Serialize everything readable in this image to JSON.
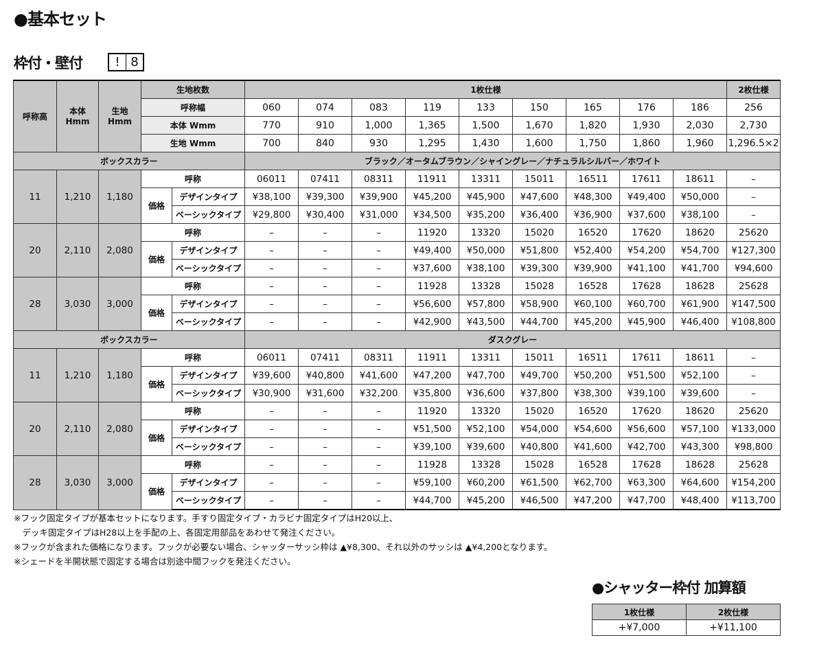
{
  "title": "●基本セット",
  "subtitle": "枠付・壁付",
  "badge": [
    "!",
    "8"
  ],
  "header": {
    "col_h": "呼称高",
    "col_body": "本体\nHmm",
    "col_fabric": "生地\nHmm",
    "sheets_label": "生地枚数",
    "single": "1枚仕様",
    "double": "2枚仕様",
    "width_label": "呼称幅",
    "body_w_label": "本体 Wmm",
    "fabric_w_label": "生地 Wmm",
    "widths": [
      "060",
      "074",
      "083",
      "119",
      "133",
      "150",
      "165",
      "176",
      "186",
      "256"
    ],
    "body_w": [
      "770",
      "910",
      "1,000",
      "1,365",
      "1,500",
      "1,670",
      "1,820",
      "1,930",
      "2,030",
      "2,730"
    ],
    "fabric_w": [
      "700",
      "840",
      "930",
      "1,295",
      "1,430",
      "1,600",
      "1,750",
      "1,860",
      "1,960",
      "1,296.5×2"
    ]
  },
  "labels": {
    "box_color": "ボックスカラー",
    "code": "呼称",
    "price": "価格",
    "design": "デザインタイプ",
    "basic": "ベーシックタイプ"
  },
  "sections": [
    {
      "color": "ブラック／オータムブラウン／シャイングレー／ナチュラルシルバー／ホワイト",
      "groups": [
        {
          "h": "11",
          "body": "1,210",
          "fabric": "1,180",
          "codes": [
            "06011",
            "07411",
            "08311",
            "11911",
            "13311",
            "15011",
            "16511",
            "17611",
            "18611",
            "–"
          ],
          "design": [
            "¥38,100",
            "¥39,300",
            "¥39,900",
            "¥45,200",
            "¥45,900",
            "¥47,600",
            "¥48,300",
            "¥49,400",
            "¥50,000",
            "–"
          ],
          "basic": [
            "¥29,800",
            "¥30,400",
            "¥31,000",
            "¥34,500",
            "¥35,200",
            "¥36,400",
            "¥36,900",
            "¥37,600",
            "¥38,100",
            "–"
          ]
        },
        {
          "h": "20",
          "body": "2,110",
          "fabric": "2,080",
          "codes": [
            "–",
            "–",
            "–",
            "11920",
            "13320",
            "15020",
            "16520",
            "17620",
            "18620",
            "25620"
          ],
          "design": [
            "–",
            "–",
            "–",
            "¥49,400",
            "¥50,000",
            "¥51,800",
            "¥52,400",
            "¥54,200",
            "¥54,700",
            "¥127,300"
          ],
          "basic": [
            "–",
            "–",
            "–",
            "¥37,600",
            "¥38,100",
            "¥39,300",
            "¥39,900",
            "¥41,100",
            "¥41,700",
            "¥94,600"
          ]
        },
        {
          "h": "28",
          "body": "3,030",
          "fabric": "3,000",
          "codes": [
            "–",
            "–",
            "–",
            "11928",
            "13328",
            "15028",
            "16528",
            "17628",
            "18628",
            "25628"
          ],
          "design": [
            "–",
            "–",
            "–",
            "¥56,600",
            "¥57,800",
            "¥58,900",
            "¥60,100",
            "¥60,700",
            "¥61,900",
            "¥147,500"
          ],
          "basic": [
            "–",
            "–",
            "–",
            "¥42,900",
            "¥43,500",
            "¥44,700",
            "¥45,200",
            "¥45,900",
            "¥46,400",
            "¥108,800"
          ]
        }
      ]
    },
    {
      "color": "ダスクグレー",
      "groups": [
        {
          "h": "11",
          "body": "1,210",
          "fabric": "1,180",
          "codes": [
            "06011",
            "07411",
            "08311",
            "11911",
            "13311",
            "15011",
            "16511",
            "17611",
            "18611",
            "–"
          ],
          "design": [
            "¥39,600",
            "¥40,800",
            "¥41,600",
            "¥47,200",
            "¥47,700",
            "¥49,700",
            "¥50,200",
            "¥51,500",
            "¥52,100",
            "–"
          ],
          "basic": [
            "¥30,900",
            "¥31,600",
            "¥32,200",
            "¥35,800",
            "¥36,600",
            "¥37,800",
            "¥38,300",
            "¥39,100",
            "¥39,600",
            "–"
          ]
        },
        {
          "h": "20",
          "body": "2,110",
          "fabric": "2,080",
          "codes": [
            "–",
            "–",
            "–",
            "11920",
            "13320",
            "15020",
            "16520",
            "17620",
            "18620",
            "25620"
          ],
          "design": [
            "–",
            "–",
            "–",
            "¥51,500",
            "¥52,100",
            "¥54,000",
            "¥54,600",
            "¥56,600",
            "¥57,100",
            "¥133,000"
          ],
          "basic": [
            "–",
            "–",
            "–",
            "¥39,100",
            "¥39,600",
            "¥40,800",
            "¥41,600",
            "¥42,700",
            "¥43,300",
            "¥98,800"
          ]
        },
        {
          "h": "28",
          "body": "3,030",
          "fabric": "3,000",
          "codes": [
            "–",
            "–",
            "–",
            "11928",
            "13328",
            "15028",
            "16528",
            "17628",
            "18628",
            "25628"
          ],
          "design": [
            "–",
            "–",
            "–",
            "¥59,100",
            "¥60,200",
            "¥61,500",
            "¥62,700",
            "¥63,300",
            "¥64,600",
            "¥154,200"
          ],
          "basic": [
            "–",
            "–",
            "–",
            "¥44,700",
            "¥45,200",
            "¥46,500",
            "¥47,200",
            "¥47,700",
            "¥48,400",
            "¥113,700"
          ]
        }
      ]
    }
  ],
  "notes": [
    "※フック固定タイプが基本セットになります。手すり固定タイプ・カラビナ固定タイプはH20以上、",
    "　デッキ固定タイプはH28以上を手配の上、各固定用部品をあわせて発注ください。",
    "※フックが含まれた価格になります。フックが必要ない場合、シャッターサッシ枠は ▲¥8,300、それ以外のサッシは ▲¥4,200となります。",
    "※シェードを半開状態で固定する場合は別途中間フックを発注ください。"
  ],
  "addon": {
    "title": "●シャッター枠付 加算額",
    "headers": [
      "1枚仕様",
      "2枚仕様"
    ],
    "values": [
      "+¥7,000",
      "+¥11,100"
    ]
  }
}
